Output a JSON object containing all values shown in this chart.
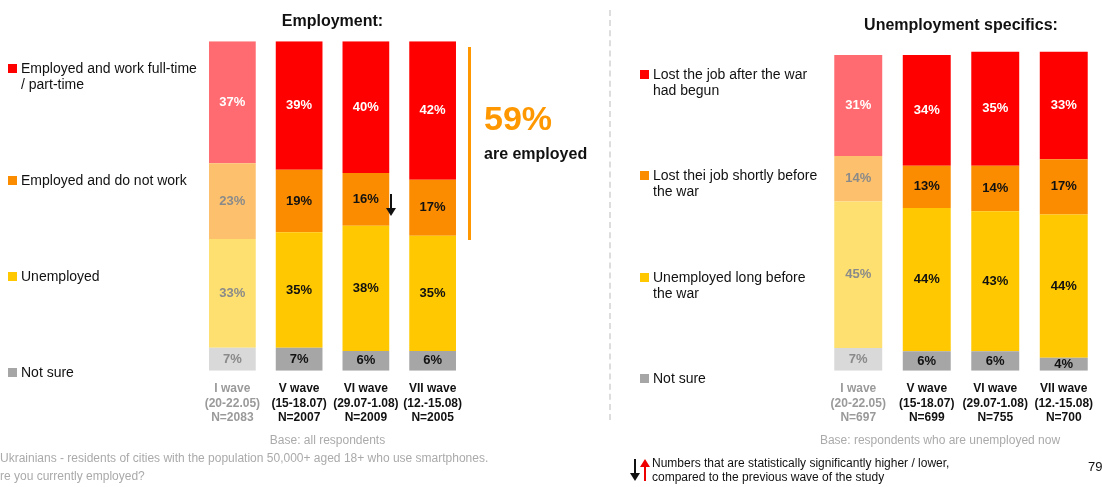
{
  "chart_data": [
    {
      "type": "bar",
      "stacked": true,
      "legend": "left",
      "title": "Employment:",
      "categories": [
        "I wave\n(20-22.05)\nN=2083",
        "V wave\n(15-18.07)\nN=2007",
        "VI wave\n(29.07-1.08)\nN=2009",
        "VII wave\n(12.-15.08)\nN=2005"
      ],
      "series": [
        {
          "name": "Not sure",
          "color": "#a6a6a6",
          "colors": [
            "#d9d9d9",
            "#a6a6a6",
            "#a6a6a6",
            "#a6a6a6"
          ],
          "values": [
            7,
            7,
            6,
            6
          ],
          "value_labels": [
            "7%",
            "7%",
            "6%",
            "6%"
          ]
        },
        {
          "name": "Unemployed",
          "color": "#ffc800",
          "colors": [
            "#fde070",
            "#ffc800",
            "#ffc800",
            "#ffc800"
          ],
          "values": [
            33,
            35,
            38,
            35
          ],
          "value_labels": [
            "33%",
            "35%",
            "38%",
            "35%"
          ]
        },
        {
          "name": "Employed and do not work",
          "color": "#fb8c00",
          "colors": [
            "#fdc16d",
            "#fb8c00",
            "#fb8c00",
            "#fb8c00"
          ],
          "values": [
            23,
            19,
            16,
            17
          ],
          "value_labels": [
            "23%",
            "19%",
            "16%",
            "17%"
          ]
        },
        {
          "name": "Employed and work full-time / part-time",
          "color": "#ff0000",
          "colors": [
            "#ff6b70",
            "#ff0000",
            "#ff0000",
            "#ff0000"
          ],
          "values": [
            37,
            39,
            40,
            42
          ],
          "value_labels": [
            "37%",
            "39%",
            "40%",
            "42%"
          ]
        }
      ],
      "annotations": [
        "59%",
        "are employed",
        "Base: all respondents",
        "Ukrainians - residents of cities with the population 50,000+ aged 18+ who use smartphones.",
        "re you currently employed?"
      ]
    },
    {
      "type": "bar",
      "stacked": true,
      "legend": "left",
      "title": "Unemployment specifics:",
      "categories": [
        "I wave\n(20-22.05)\nN=697",
        "V wave\n(15-18.07)\nN=699",
        "VI wave\n(29.07-1.08)\nN=755",
        "VII wave\n(12.-15.08)\nN=700"
      ],
      "series": [
        {
          "name": "Not sure",
          "color": "#a6a6a6",
          "colors": [
            "#d9d9d9",
            "#a6a6a6",
            "#a6a6a6",
            "#a6a6a6"
          ],
          "values": [
            7,
            6,
            6,
            4
          ],
          "value_labels": [
            "7%",
            "6%",
            "6%",
            "4%"
          ]
        },
        {
          "name": "Unemployed long before the war",
          "color": "#ffc800",
          "colors": [
            "#fde070",
            "#ffc800",
            "#ffc800",
            "#ffc800"
          ],
          "values": [
            45,
            44,
            43,
            44
          ],
          "value_labels": [
            "45%",
            "44%",
            "43%",
            "44%"
          ]
        },
        {
          "name": "Lost thei job shortly before the war",
          "color": "#fb8c00",
          "colors": [
            "#fdc16d",
            "#fb8c00",
            "#fb8c00",
            "#fb8c00"
          ],
          "values": [
            14,
            13,
            14,
            17
          ],
          "value_labels": [
            "14%",
            "13%",
            "14%",
            "17%"
          ]
        },
        {
          "name": "Lost the job after the war had begun",
          "color": "#ff0000",
          "colors": [
            "#ff6b70",
            "#ff0000",
            "#ff0000",
            "#ff0000"
          ],
          "values": [
            31,
            34,
            35,
            33
          ],
          "value_labels": [
            "31%",
            "34%",
            "35%",
            "33%"
          ]
        }
      ],
      "annotations": [
        "Base: respondents who are unemployed now",
        "Numbers that are statistically significantly higher / lower, compared to the previous wave of the study",
        "79"
      ]
    }
  ]
}
